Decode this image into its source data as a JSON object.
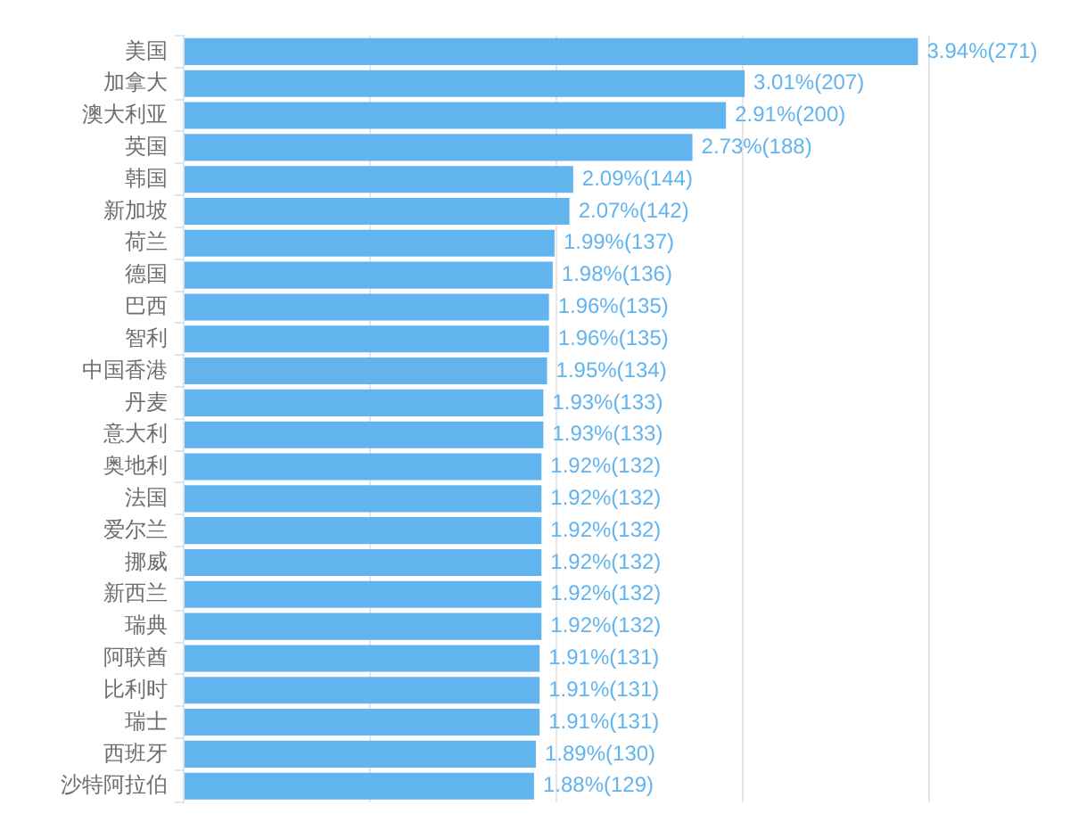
{
  "chart_data": {
    "type": "bar",
    "orientation": "horizontal",
    "categories": [
      "美国",
      "加拿大",
      "澳大利亚",
      "英国",
      "韩国",
      "新加坡",
      "荷兰",
      "德国",
      "巴西",
      "智利",
      "中国香港",
      "丹麦",
      "意大利",
      "奥地利",
      "法国",
      "爱尔兰",
      "挪威",
      "新西兰",
      "瑞典",
      "阿联酋",
      "比利时",
      "瑞士",
      "西班牙",
      "沙特阿拉伯"
    ],
    "values": [
      3.94,
      3.01,
      2.91,
      2.73,
      2.09,
      2.07,
      1.99,
      1.98,
      1.96,
      1.96,
      1.95,
      1.93,
      1.93,
      1.92,
      1.92,
      1.92,
      1.92,
      1.92,
      1.92,
      1.91,
      1.91,
      1.91,
      1.89,
      1.88
    ],
    "value_labels": [
      "3.94%(271)",
      "3.01%(207)",
      "2.91%(200)",
      "2.73%(188)",
      "2.09%(144)",
      "2.07%(142)",
      "1.99%(137)",
      "1.98%(136)",
      "1.96%(135)",
      "1.96%(135)",
      "1.95%(134)",
      "1.93%(133)",
      "1.93%(133)",
      "1.92%(132)",
      "1.92%(132)",
      "1.92%(132)",
      "1.92%(132)",
      "1.92%(132)",
      "1.92%(132)",
      "1.91%(131)",
      "1.91%(131)",
      "1.91%(131)",
      "1.89%(130)",
      "1.88%(129)"
    ],
    "color": "#62b4ef",
    "xlim": [
      0,
      4
    ],
    "xticks": [
      {
        "value": 0,
        "label": null
      },
      {
        "value": 1,
        "label": null
      },
      {
        "value": 2,
        "label": null
      },
      {
        "value": 3,
        "label": null
      },
      {
        "value": 4,
        "label": null
      }
    ],
    "grid": "x",
    "tick_labels": "y"
  }
}
